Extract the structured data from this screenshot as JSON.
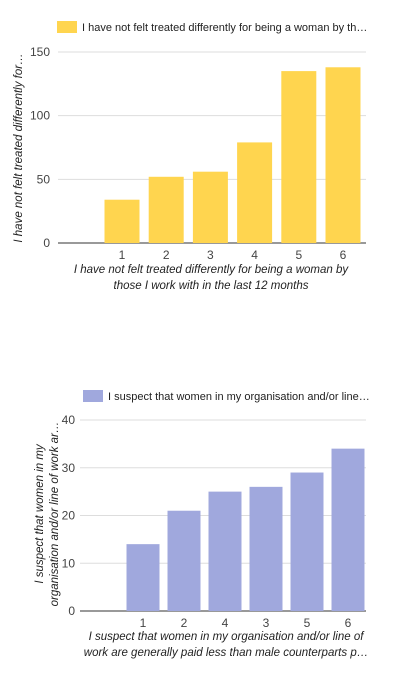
{
  "chart_data": [
    {
      "type": "bar",
      "legend": "I have not felt treated differently for being a woman by th…",
      "legend_position": "top",
      "ylabel": "I have not felt treated differently for…",
      "xlabel_lines": [
        "I have not felt treated differently for being a woman by",
        "those I work with in the last 12 months"
      ],
      "categories": [
        "1",
        "2",
        "3",
        "4",
        "5",
        "6"
      ],
      "values": [
        34,
        52,
        56,
        79,
        135,
        138
      ],
      "ylim": [
        0,
        150
      ],
      "yticks": [
        "0",
        "50",
        "100",
        "150"
      ],
      "color": "#FFD54F",
      "grid": true
    },
    {
      "type": "bar",
      "legend": "I suspect that women in my organisation and/or line…",
      "legend_position": "top",
      "ylabel_lines": [
        "I suspect that women in my",
        "organisation and/or line of work ar…"
      ],
      "xlabel_lines": [
        "I suspect that women in my organisation and/or line of",
        "work are generally paid less than male counterparts p…"
      ],
      "categories": [
        "1",
        "2",
        "4",
        "3",
        "5",
        "6"
      ],
      "values": [
        14,
        21,
        25,
        26,
        29,
        34
      ],
      "ylim": [
        0,
        40
      ],
      "yticks": [
        "0",
        "10",
        "20",
        "30",
        "40"
      ],
      "color": "#A0A8DD",
      "grid": true
    }
  ]
}
